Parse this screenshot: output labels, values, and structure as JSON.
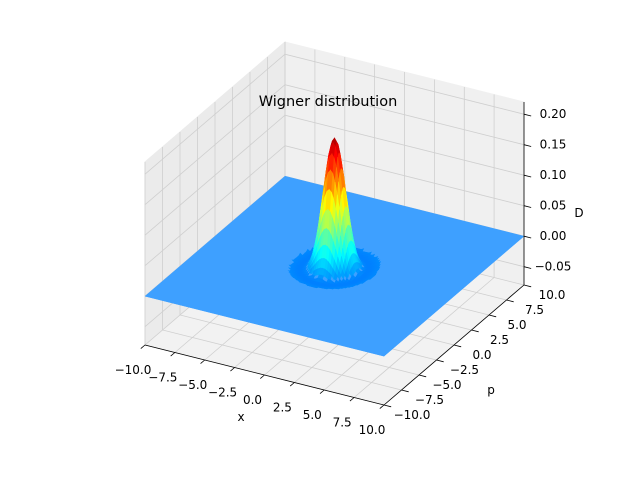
{
  "chart_data": {
    "type": "surface3d",
    "title": "Wigner distribution",
    "xlabel": "x",
    "ylabel": "p",
    "zlabel": "D",
    "xlim": [
      -10,
      10
    ],
    "ylim": [
      -10,
      10
    ],
    "zlim": [
      -0.08,
      0.22
    ],
    "x_ticks": [
      "−10.0",
      "−7.5",
      "−5.0",
      "−2.5",
      "0.0",
      "2.5",
      "5.0",
      "7.5",
      "10.0"
    ],
    "y_ticks": [
      "−10.0",
      "−7.5",
      "−5.0",
      "−2.5",
      "0.0",
      "2.5",
      "5.0",
      "7.5",
      "10.0"
    ],
    "z_ticks": [
      "−0.05",
      "0.00",
      "0.05",
      "0.10",
      "0.15",
      "0.20"
    ],
    "grid": true,
    "colormap": "jet",
    "peak": {
      "x": 0,
      "p": 0,
      "D": 0.21
    },
    "minimum": {
      "D": -0.07
    },
    "plane_color": "#3ea0ff"
  }
}
